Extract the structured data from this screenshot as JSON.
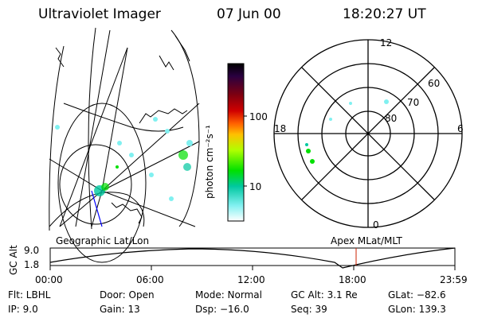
{
  "header": {
    "title": "Ultraviolet Imager",
    "date": "07 Jun 00",
    "time": "18:20:27 UT"
  },
  "colorbar": {
    "unit_label": "photon cm⁻²s⁻¹",
    "ticks": [
      "100",
      "10"
    ]
  },
  "polar_plot": {
    "mlt_labels": [
      "12",
      "18",
      "6",
      "0"
    ],
    "lat_labels": [
      "60",
      "70",
      "80"
    ]
  },
  "timeline": {
    "left_label": "Geographic Lat/Lon",
    "right_label": "Apex MLat/MLT",
    "axis_title": "GC Alt",
    "y_ticks": [
      "9.0",
      "1.8"
    ],
    "x_ticks": [
      "00:00",
      "06:00",
      "12:00",
      "18:00",
      "23:59"
    ]
  },
  "info": {
    "filter": "Flt: LBHL",
    "ip": "IP:  9.0",
    "door": "Door: Open",
    "gain": "Gain: 13",
    "mode": "Mode: Normal",
    "dsp": "Dsp:  −16.0",
    "gc_alt": "GC Alt: 3.1 Re",
    "seq": "Seq: 39",
    "glat": "GLat: −82.6",
    "glon": "GLon: 139.3"
  },
  "colors": {
    "colorbar_stops": [
      "#000000",
      "#2a0040",
      "#800010",
      "#d00000",
      "#ff6000",
      "#ffc000",
      "#b0ff00",
      "#00e000",
      "#00c8a0",
      "#80f0f0",
      "#ffffff"
    ],
    "cursor": "#cc2200",
    "track": "#0000ff"
  }
}
